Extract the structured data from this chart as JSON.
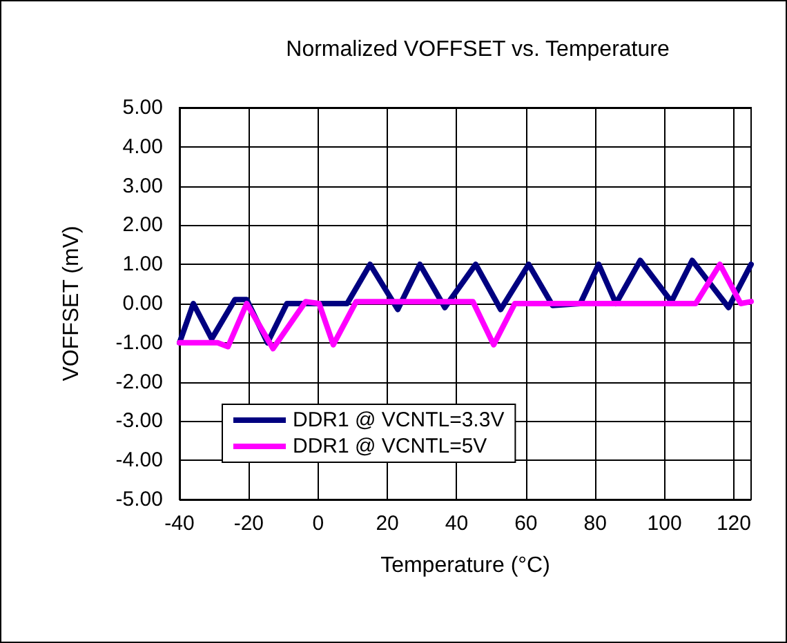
{
  "chart_data": {
    "type": "line",
    "title": "Normalized VOFFSET vs. Temperature",
    "xlabel": "Temperature (°C)",
    "ylabel": "VOFFSET (mV)",
    "xlim": [
      -40,
      125
    ],
    "xticks": [
      -40,
      -20,
      0,
      20,
      40,
      60,
      80,
      100,
      120
    ],
    "ylim": [
      -5,
      5
    ],
    "yticks": [
      {
        "value": -5,
        "label": "-5.00"
      },
      {
        "value": -4,
        "label": "-4.00"
      },
      {
        "value": -3,
        "label": "-3.00"
      },
      {
        "value": -2,
        "label": "-2.00"
      },
      {
        "value": -1,
        "label": "-1.00"
      },
      {
        "value": 0,
        "label": "0.00"
      },
      {
        "value": 1,
        "label": "1.00"
      },
      {
        "value": 2,
        "label": "2.00"
      },
      {
        "value": 3,
        "label": "3.00"
      },
      {
        "value": 4,
        "label": "4.00"
      },
      {
        "value": 5,
        "label": "5.00"
      }
    ],
    "grid": true,
    "legend": "bottom left",
    "marker": "none",
    "line_style": "solid",
    "series": [
      {
        "name": "DDR1 @ VCNTL=3.3V",
        "color": "#000080",
        "x": [
          -40,
          -36,
          -30.7,
          -24,
          -20.6,
          -14.6,
          -9,
          8.4,
          15,
          23,
          29.4,
          36.6,
          45.5,
          52.7,
          60.8,
          67.7,
          75.7,
          81,
          86,
          93,
          102,
          108,
          118.5,
          125
        ],
        "values": [
          -1,
          0,
          -0.9,
          0.1,
          0.1,
          -1,
          0,
          0,
          1,
          -0.15,
          1,
          -0.1,
          1,
          -0.15,
          1,
          -0.05,
          0,
          1,
          0,
          1.1,
          0.05,
          1.1,
          -0.1,
          1
        ]
      },
      {
        "name": "DDR1 @ VCNTL=5V",
        "color": "#ff00ff",
        "x": [
          -40,
          -29,
          -26,
          -20.6,
          -13,
          -3.6,
          0.3,
          4.4,
          11,
          44.7,
          50.7,
          56.8,
          109,
          116,
          122,
          125
        ],
        "values": [
          -1,
          -1,
          -1.1,
          0,
          -1.15,
          0.05,
          0,
          -1.05,
          0.05,
          0.05,
          -1.05,
          0,
          0,
          1,
          0,
          0.05
        ]
      }
    ]
  }
}
